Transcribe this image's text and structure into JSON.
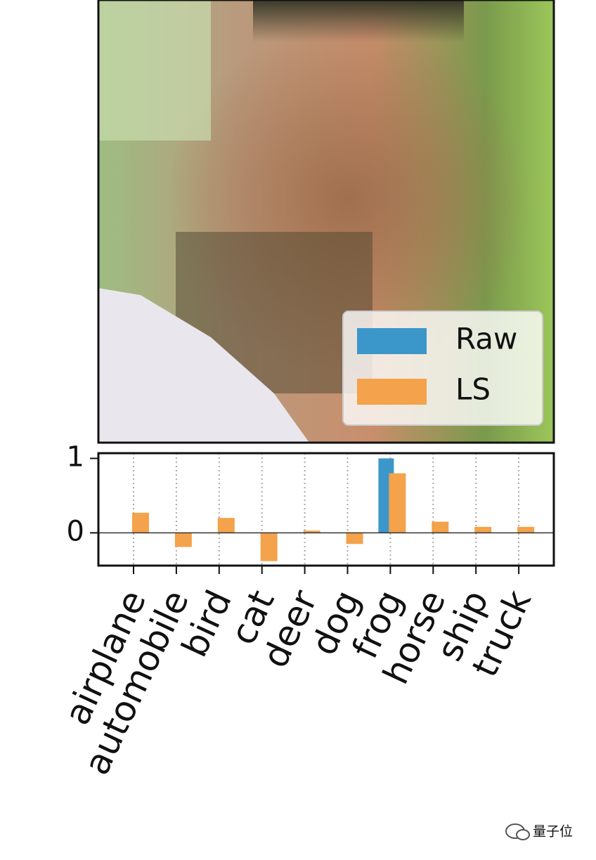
{
  "chart_data": {
    "type": "bar",
    "categories": [
      "airplane",
      "automobile",
      "bird",
      "cat",
      "deer",
      "dog",
      "frog",
      "horse",
      "ship",
      "truck"
    ],
    "series": [
      {
        "name": "Raw",
        "color": "#3b97c9",
        "values": [
          0,
          0,
          0,
          0,
          0,
          0,
          1,
          0,
          0,
          0
        ]
      },
      {
        "name": "LS",
        "color": "#f4a24b",
        "values": [
          0.27,
          -0.19,
          0.2,
          -0.38,
          0.03,
          -0.15,
          0.8,
          0.15,
          0.08,
          0.08
        ]
      }
    ],
    "ylim": [
      -0.44,
      1.07
    ],
    "yticks": [
      0,
      1
    ],
    "grid": true,
    "legend": "lower right"
  },
  "watermark": "量子位"
}
